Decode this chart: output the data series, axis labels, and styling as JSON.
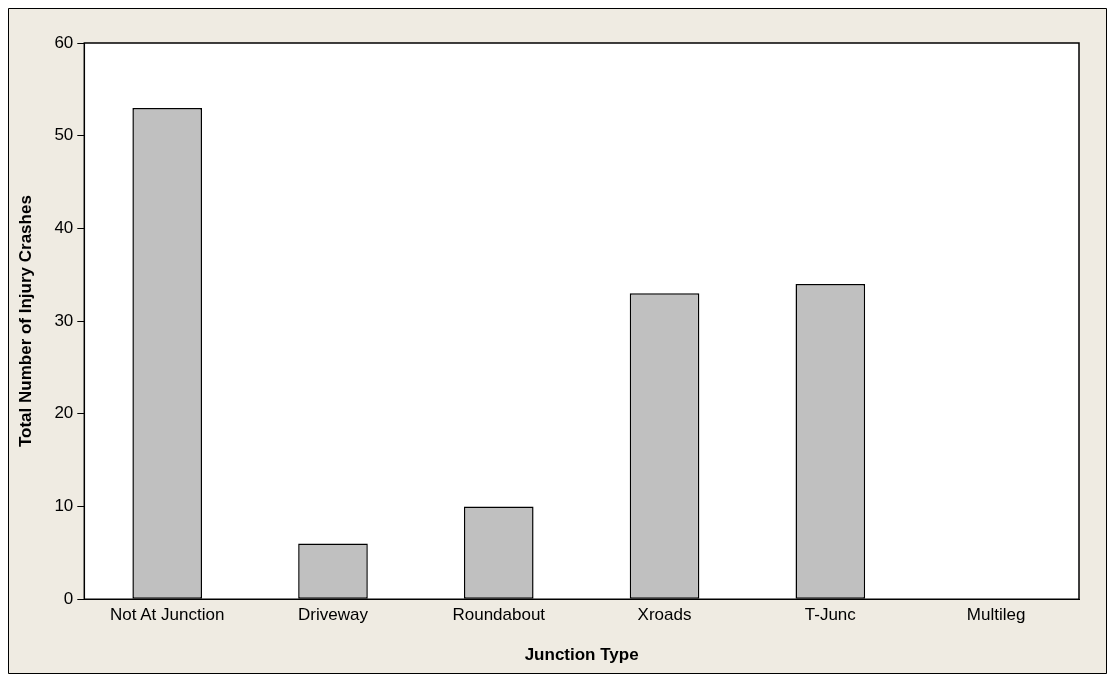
{
  "chart_data": {
    "type": "bar",
    "xlabel": "Junction Type",
    "ylabel": "Total Number of Injury Crashes",
    "categories": [
      "Not At Junction",
      "Driveway",
      "Roundabout",
      "Xroads",
      "T-Junc",
      "Multileg"
    ],
    "values": [
      53,
      6,
      10,
      33,
      34,
      0
    ],
    "color": "#c0c0c0",
    "ylim": [
      0,
      60
    ],
    "yticks": [
      0,
      10,
      20,
      30,
      40,
      50,
      60
    ],
    "grid": false,
    "legend": false
  }
}
